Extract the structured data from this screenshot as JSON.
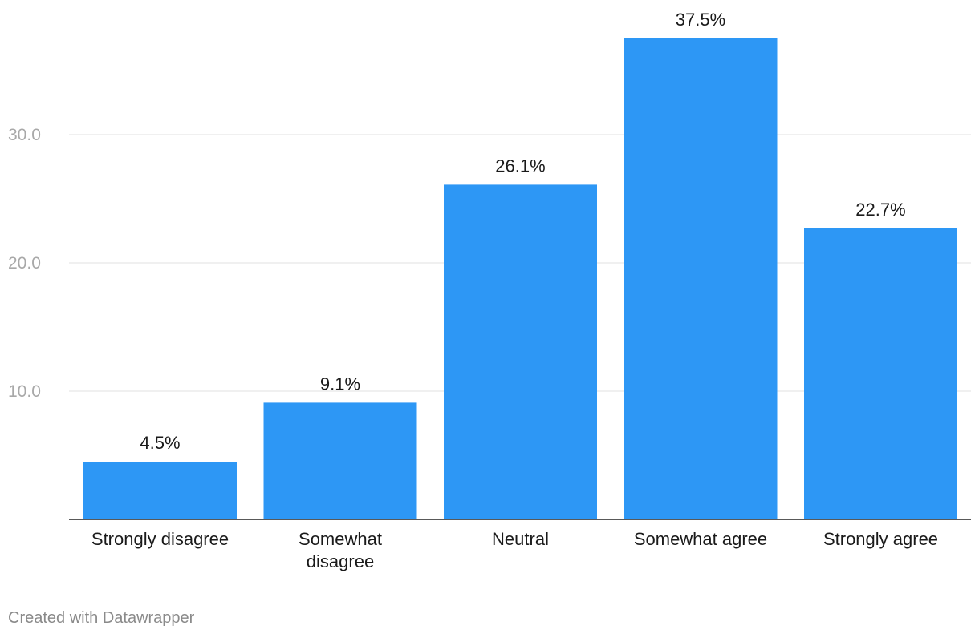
{
  "chart_data": {
    "type": "bar",
    "categories": [
      [
        "Strongly disagree"
      ],
      [
        "Somewhat",
        "disagree"
      ],
      [
        "Neutral"
      ],
      [
        "Somewhat agree"
      ],
      [
        "Strongly agree"
      ]
    ],
    "values": [
      4.5,
      9.1,
      26.1,
      37.5,
      22.7
    ],
    "value_labels": [
      "4.5%",
      "9.1%",
      "26.1%",
      "37.5%",
      "22.7%"
    ],
    "yticks": [
      {
        "value": 10,
        "label": "10.0"
      },
      {
        "value": 20,
        "label": "20.0"
      },
      {
        "value": 30,
        "label": "30.0"
      }
    ],
    "ylim": [
      0,
      40
    ],
    "grid": true,
    "bar_color": "#2d97f5",
    "title": "",
    "xlabel": "",
    "ylabel": ""
  },
  "footer": {
    "credit": "Created with Datawrapper"
  }
}
